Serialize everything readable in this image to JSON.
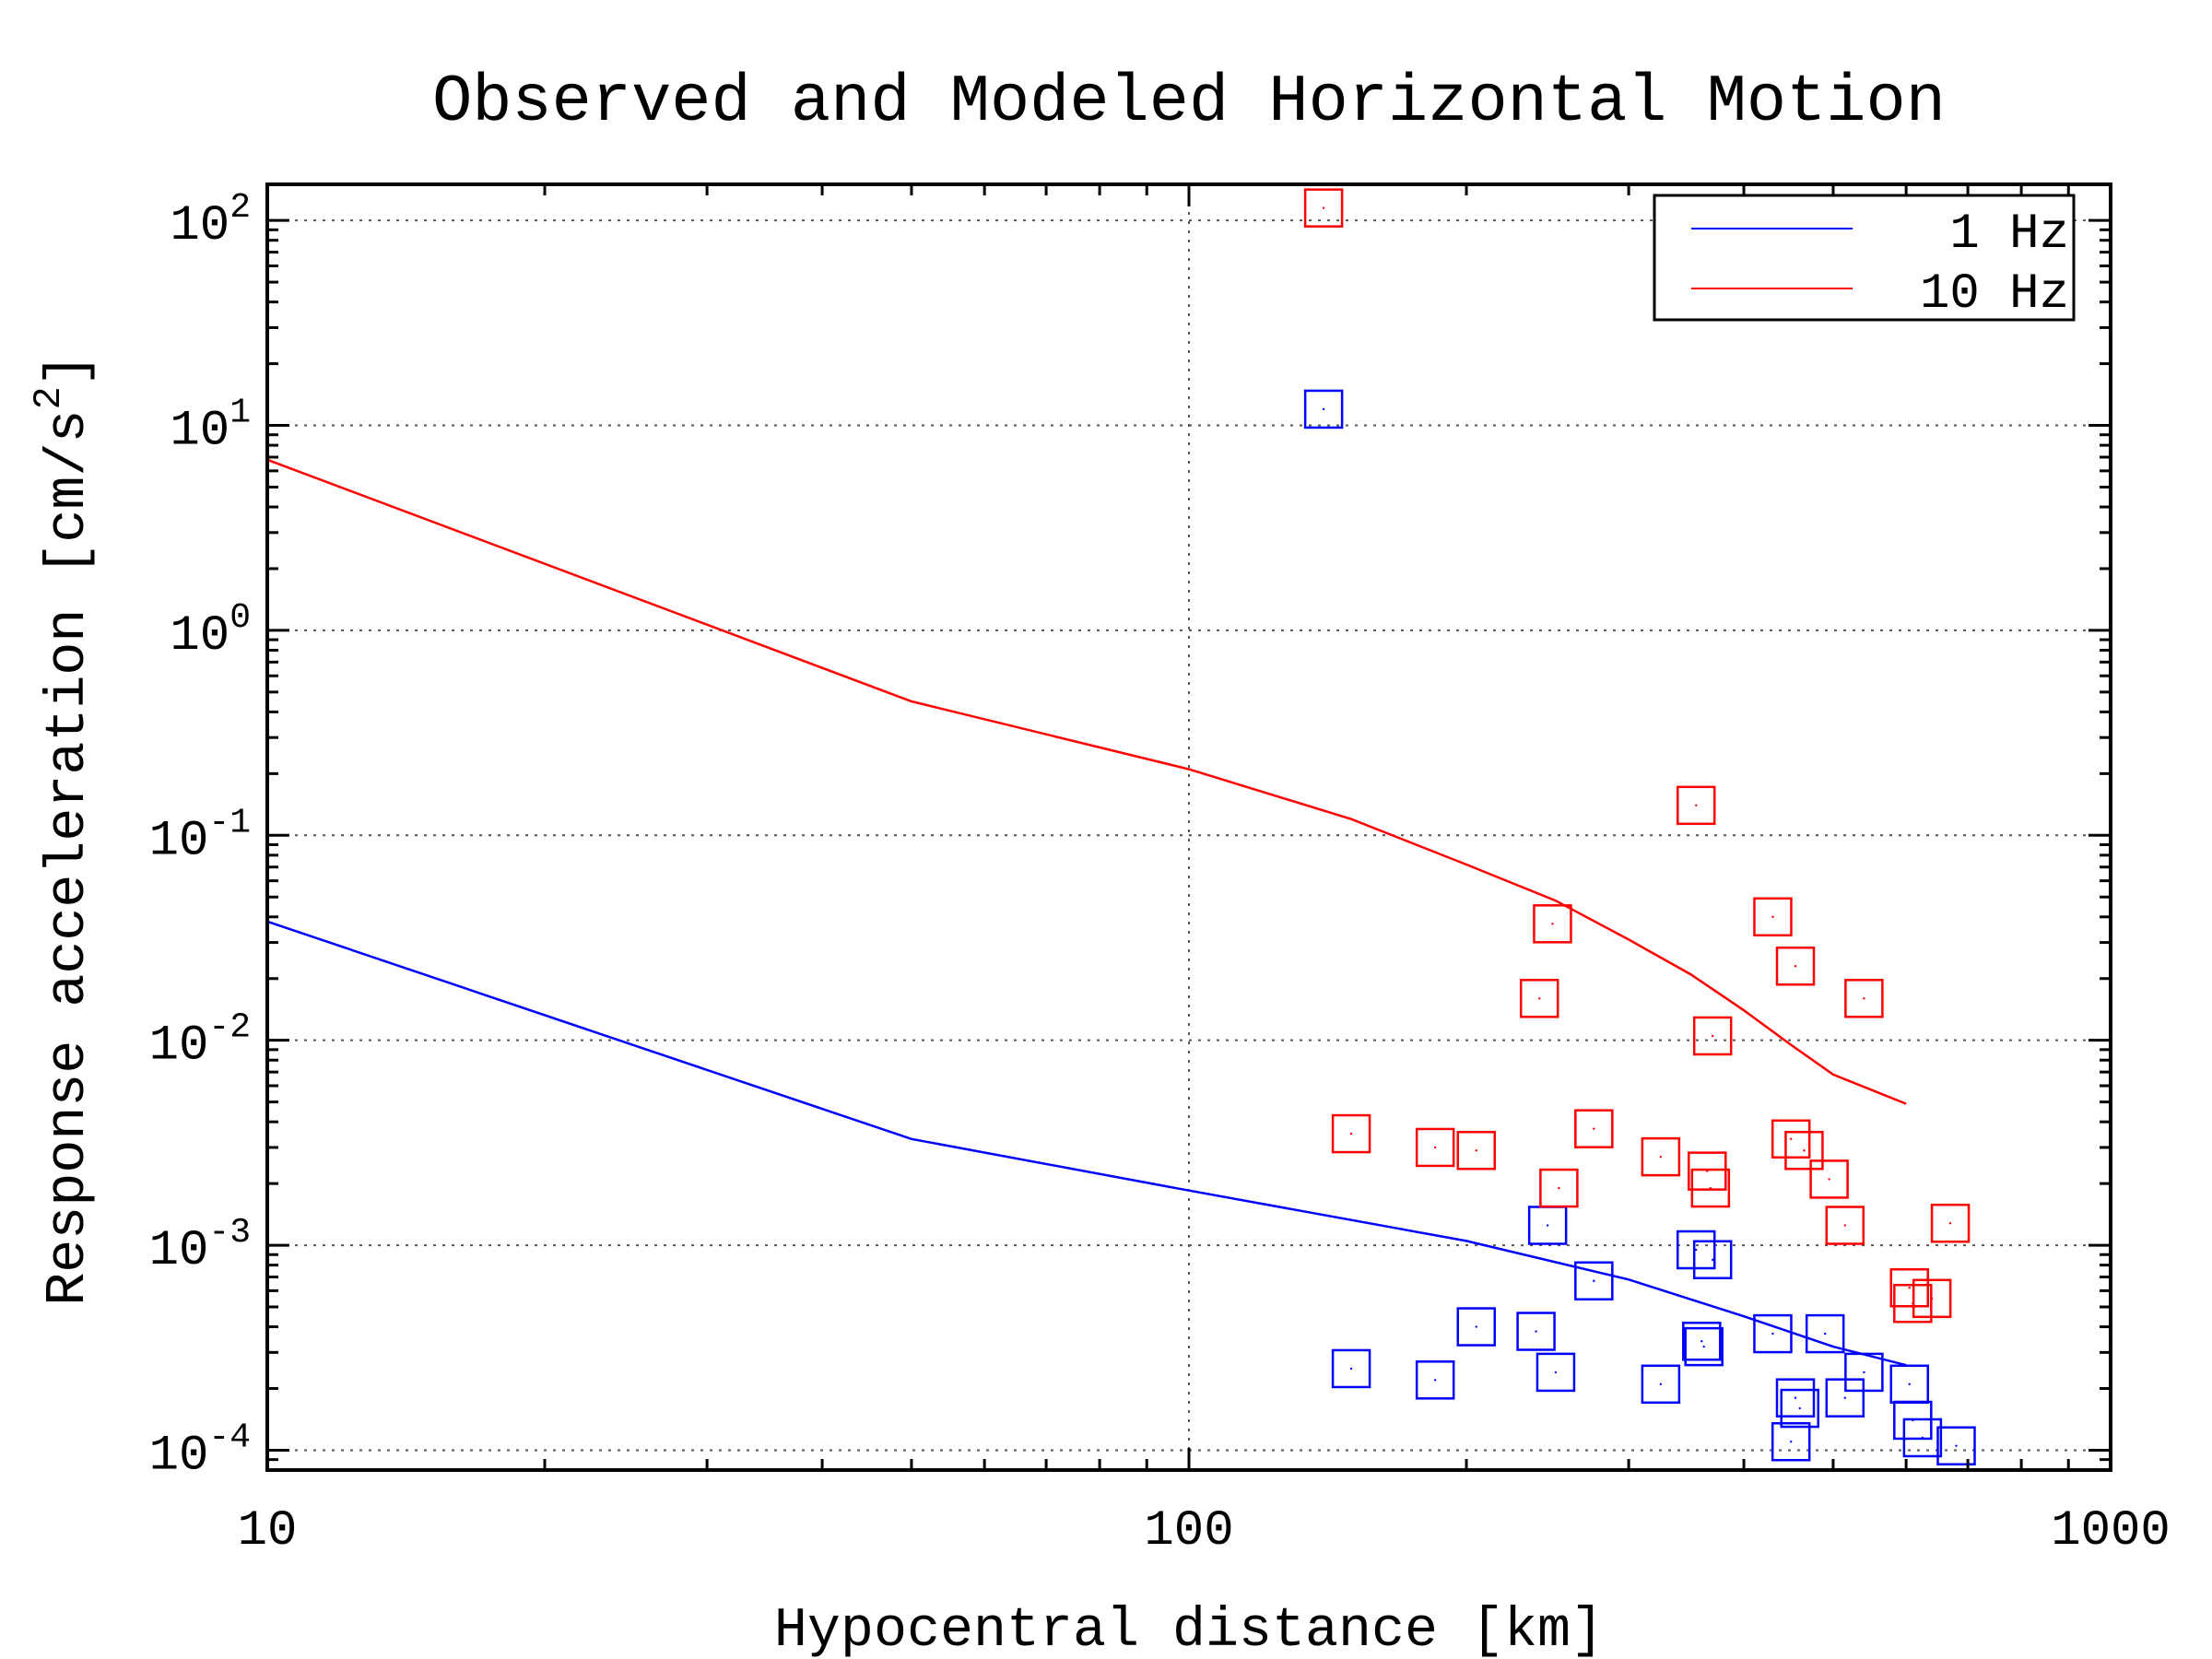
{
  "chart_data": {
    "type": "scatter",
    "title": "Observed and Modeled Horizontal Motion",
    "xlabel": "Hypocentral distance [km]",
    "ylabel": "Response acceleration [cm/s",
    "ylabel_sup": "2",
    "ylabel_tail": "]",
    "x_scale": "log",
    "y_scale": "log",
    "xlim": [
      10,
      1000
    ],
    "ylim": [
      8e-05,
      150
    ],
    "x_ticks": [
      {
        "value": 10,
        "label": "10"
      },
      {
        "value": 100,
        "label": "100"
      },
      {
        "value": 1000,
        "label": "1000"
      }
    ],
    "y_ticks": [
      {
        "value": 0.0001,
        "base": "10",
        "exp": "-4"
      },
      {
        "value": 0.001,
        "base": "10",
        "exp": "-3"
      },
      {
        "value": 0.01,
        "base": "10",
        "exp": "-2"
      },
      {
        "value": 0.1,
        "base": "10",
        "exp": "-1"
      },
      {
        "value": 1,
        "base": "10",
        "exp": "0"
      },
      {
        "value": 10,
        "base": "10",
        "exp": "1"
      },
      {
        "value": 100,
        "base": "10",
        "exp": "2"
      }
    ],
    "grid": true,
    "legend_position": "top-right",
    "series": [
      {
        "name": "1 Hz",
        "color": "#0000ff",
        "kind": "model-line",
        "points": [
          [
            10,
            0.038
          ],
          [
            50,
            0.0033
          ],
          [
            100,
            0.00185
          ],
          [
            200,
            0.00105
          ],
          [
            300,
            0.00068
          ],
          [
            400,
            0.00045
          ],
          [
            500,
            0.00032
          ],
          [
            600,
            0.00026
          ]
        ]
      },
      {
        "name": "10 Hz",
        "color": "#ff0000",
        "kind": "model-line",
        "points": [
          [
            10,
            6.8
          ],
          [
            50,
            0.45
          ],
          [
            100,
            0.21
          ],
          [
            150,
            0.12
          ],
          [
            200,
            0.072
          ],
          [
            250,
            0.048
          ],
          [
            300,
            0.031
          ],
          [
            350,
            0.021
          ],
          [
            400,
            0.014
          ],
          [
            450,
            0.0095
          ],
          [
            500,
            0.0068
          ],
          [
            600,
            0.0049
          ]
        ]
      },
      {
        "name": "",
        "color": "#0000ff",
        "kind": "observed-markers",
        "points": [
          [
            140,
            12
          ],
          [
            150,
            0.00025
          ],
          [
            185,
            0.00022
          ],
          [
            205,
            0.0004
          ],
          [
            238,
            0.00038
          ],
          [
            245,
            0.00125
          ],
          [
            250,
            0.00024
          ],
          [
            275,
            0.00067
          ],
          [
            325,
            0.00021
          ],
          [
            355,
            0.00095
          ],
          [
            360,
            0.00034
          ],
          [
            362,
            0.00032
          ],
          [
            370,
            0.00085
          ],
          [
            430,
            0.00037
          ],
          [
            450,
            0.00011
          ],
          [
            455,
            0.00018
          ],
          [
            460,
            0.00016
          ],
          [
            490,
            0.00037
          ],
          [
            515,
            0.00018
          ],
          [
            540,
            0.00024
          ],
          [
            605,
            0.00021
          ],
          [
            610,
            0.00014
          ],
          [
            625,
            0.000115
          ],
          [
            680,
            0.000105
          ]
        ]
      },
      {
        "name": "",
        "color": "#ff0000",
        "kind": "observed-markers",
        "points": [
          [
            140,
            115
          ],
          [
            150,
            0.0035
          ],
          [
            185,
            0.003
          ],
          [
            205,
            0.0029
          ],
          [
            240,
            0.016
          ],
          [
            248,
            0.037
          ],
          [
            252,
            0.0019
          ],
          [
            275,
            0.0037
          ],
          [
            325,
            0.0027
          ],
          [
            355,
            0.14
          ],
          [
            365,
            0.0023
          ],
          [
            368,
            0.0019
          ],
          [
            370,
            0.0105
          ],
          [
            430,
            0.04
          ],
          [
            450,
            0.0033
          ],
          [
            455,
            0.023
          ],
          [
            465,
            0.0029
          ],
          [
            495,
            0.0021
          ],
          [
            515,
            0.00125
          ],
          [
            540,
            0.016
          ],
          [
            605,
            0.00062
          ],
          [
            610,
            0.00052
          ],
          [
            640,
            0.00055
          ],
          [
            670,
            0.00128
          ]
        ]
      }
    ]
  }
}
